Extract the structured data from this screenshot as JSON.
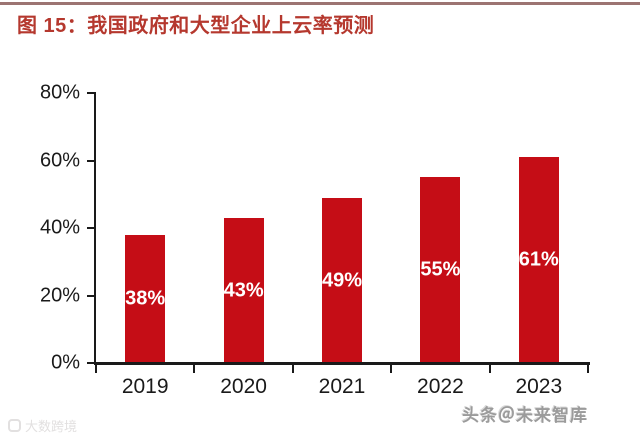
{
  "header": {
    "title": "图 15：我国政府和大型企业上云率预测"
  },
  "colors": {
    "title": "#b5382e",
    "top_rule": "#9c7472",
    "bar": "#c50d16",
    "bar_label": "#ffffff",
    "axis": "#1a1a1a",
    "tick_label": "#1a1a1a"
  },
  "chart_data": {
    "type": "bar",
    "title": "我国政府和大型企业上云率预测",
    "categories": [
      "2019",
      "2020",
      "2021",
      "2022",
      "2023"
    ],
    "values": [
      38,
      43,
      49,
      55,
      61
    ],
    "data_labels": [
      "38%",
      "43%",
      "49%",
      "55%",
      "61%"
    ],
    "xlabel": "",
    "ylabel": "",
    "ylim": [
      0,
      80
    ],
    "yticks": [
      0,
      20,
      40,
      60,
      80
    ],
    "ytick_labels": [
      "0%",
      "20%",
      "40%",
      "60%",
      "80%"
    ],
    "grid": false,
    "legend": null,
    "bar_color": "#c50d16",
    "data_label_color": "#ffffff"
  },
  "watermarks": {
    "bottom_left": "大数跨境",
    "bottom_right": "头条＠未来智库"
  }
}
